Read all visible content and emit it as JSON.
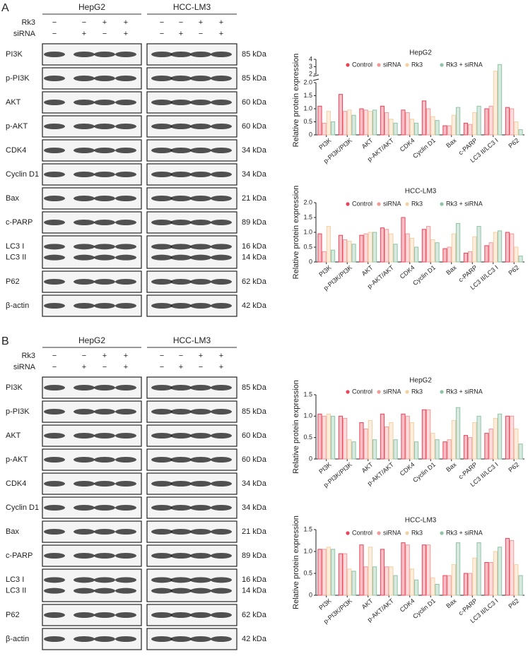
{
  "panels": [
    {
      "label": "A",
      "cells": [
        "HepG2",
        "HCC-LM3"
      ],
      "treatments": [
        {
          "name": "Rk3",
          "signs": [
            "−",
            "−",
            "+",
            "+"
          ]
        },
        {
          "name": "siRNA",
          "signs": [
            "−",
            "+",
            "−",
            "+"
          ]
        }
      ],
      "proteins": [
        {
          "names": [
            "PI3K"
          ],
          "kda": [
            "85 kDa"
          ]
        },
        {
          "names": [
            "p-PI3K"
          ],
          "kda": [
            "85 kDa"
          ]
        },
        {
          "names": [
            "AKT"
          ],
          "kda": [
            "60 kDa"
          ]
        },
        {
          "names": [
            "p-AKT"
          ],
          "kda": [
            "60 kDa"
          ]
        },
        {
          "names": [
            "CDK4"
          ],
          "kda": [
            "34 kDa"
          ]
        },
        {
          "names": [
            "Cyclin D1"
          ],
          "kda": [
            "34 kDa"
          ]
        },
        {
          "names": [
            "Bax"
          ],
          "kda": [
            "21 kDa"
          ]
        },
        {
          "names": [
            "c-PARP"
          ],
          "kda": [
            "89 kDa"
          ]
        },
        {
          "names": [
            "LC3 I",
            "LC3 II"
          ],
          "kda": [
            "16 kDa",
            "14 kDa"
          ]
        },
        {
          "names": [
            "P62"
          ],
          "kda": [
            "62 kDa"
          ]
        },
        {
          "names": [
            "β-actin"
          ],
          "kda": [
            "42 kDa"
          ]
        }
      ]
    },
    {
      "label": "B",
      "cells": [
        "HepG2",
        "HCC-LM3"
      ],
      "treatments": [
        {
          "name": "Rk3",
          "signs": [
            "−",
            "−",
            "+",
            "+"
          ]
        },
        {
          "name": "siRNA",
          "signs": [
            "−",
            "+",
            "−",
            "+"
          ]
        }
      ],
      "proteins": [
        {
          "names": [
            "PI3K"
          ],
          "kda": [
            "85 kDa"
          ]
        },
        {
          "names": [
            "p-PI3K"
          ],
          "kda": [
            "85 kDa"
          ]
        },
        {
          "names": [
            "AKT"
          ],
          "kda": [
            "60 kDa"
          ]
        },
        {
          "names": [
            "p-AKT"
          ],
          "kda": [
            "60 kDa"
          ]
        },
        {
          "names": [
            "CDK4"
          ],
          "kda": [
            "34 kDa"
          ]
        },
        {
          "names": [
            "Cyclin D1"
          ],
          "kda": [
            "34 kDa"
          ]
        },
        {
          "names": [
            "Bax"
          ],
          "kda": [
            "21 kDa"
          ]
        },
        {
          "names": [
            "c-PARP"
          ],
          "kda": [
            "89 kDa"
          ]
        },
        {
          "names": [
            "LC3 I",
            "LC3 II"
          ],
          "kda": [
            "16 kDa",
            "14 kDa"
          ]
        },
        {
          "names": [
            "P62"
          ],
          "kda": [
            "62 kDa"
          ]
        },
        {
          "names": [
            "β-actin"
          ],
          "kda": [
            "42 kDa"
          ]
        }
      ]
    }
  ],
  "chart_data": [
    {
      "type": "bar",
      "title": "HepG2",
      "ylabel": "Relative protein expression",
      "categories": [
        "PI3K",
        "p-PI3K/PI3K",
        "AKT",
        "p-AKT/AKT",
        "CDK4",
        "Cyclin D1",
        "Bax",
        "c-PARP",
        "LC3 II/LC3 I",
        "P62"
      ],
      "series": [
        {
          "name": "Control",
          "color": "#e8445a",
          "values": [
            1.1,
            1.55,
            1.0,
            1.1,
            0.95,
            1.3,
            0.35,
            0.45,
            1.0,
            1.05
          ]
        },
        {
          "name": "siRNA",
          "color": "#f19a9a",
          "values": [
            0.45,
            0.9,
            0.95,
            0.85,
            0.85,
            1.0,
            0.35,
            0.4,
            1.1,
            1.0
          ]
        },
        {
          "name": "Rk3",
          "color": "#f3cfa2",
          "values": [
            0.9,
            0.95,
            0.9,
            0.6,
            0.6,
            0.7,
            0.75,
            0.85,
            2.4,
            0.5
          ]
        },
        {
          "name": "Rk3 + siRNA",
          "color": "#8fc3a6",
          "values": [
            0.5,
            0.75,
            0.95,
            0.45,
            0.45,
            0.55,
            1.05,
            1.1,
            3.3,
            0.2
          ]
        }
      ],
      "ylim": [
        0,
        4
      ],
      "ybreak": 2,
      "yticks": [
        0,
        0.5,
        {
          "value": 1,
          "label": "1.0"
        },
        1.5,
        {
          "value": 2,
          "label": "2.0"
        },
        2,
        3,
        4
      ]
    },
    {
      "type": "bar",
      "title": "HCC-LM3",
      "ylabel": "Relative protein expression",
      "categories": [
        "PI3K",
        "p-PI3K/PI3K",
        "AKT",
        "p-AKT/AKT",
        "CDK4",
        "Cyclin D1",
        "Bax",
        "c-PARP",
        "LC3 II/LC3 I",
        "P62"
      ],
      "series": [
        {
          "name": "Control",
          "color": "#e8445a",
          "values": [
            0.95,
            0.9,
            0.9,
            1.15,
            1.5,
            1.1,
            0.45,
            0.3,
            0.55,
            1.0
          ]
        },
        {
          "name": "siRNA",
          "color": "#f19a9a",
          "values": [
            0.35,
            0.75,
            0.95,
            1.1,
            0.95,
            1.2,
            0.5,
            0.35,
            0.65,
            0.95
          ]
        },
        {
          "name": "Rk3",
          "color": "#f3cfa2",
          "values": [
            1.2,
            0.7,
            1.0,
            0.95,
            0.8,
            0.75,
            0.95,
            0.85,
            1.0,
            0.5
          ]
        },
        {
          "name": "Rk3 + siRNA",
          "color": "#8fc3a6",
          "values": [
            0.4,
            0.6,
            1.0,
            0.6,
            0.5,
            0.65,
            1.3,
            1.2,
            1.05,
            0.2
          ]
        }
      ],
      "ylim": [
        0,
        2
      ],
      "yticks": [
        0,
        0.5,
        {
          "value": 1,
          "label": "1.0"
        },
        1.5,
        {
          "value": 2,
          "label": "2.0"
        }
      ]
    },
    {
      "type": "bar",
      "title": "HepG2",
      "ylabel": "Relative protein expression",
      "categories": [
        "PI3K",
        "p-PI3K/PI3K",
        "AKT",
        "p-AKT/AKT",
        "CDK4",
        "Cyclin D1",
        "Bax",
        "c-PARP",
        "LC3 II/LC3 I",
        "P62"
      ],
      "series": [
        {
          "name": "Control",
          "color": "#e8445a",
          "values": [
            1.05,
            1.0,
            0.85,
            1.05,
            1.05,
            1.15,
            0.4,
            0.55,
            0.6,
            1.0
          ]
        },
        {
          "name": "siRNA",
          "color": "#f19a9a",
          "values": [
            1.0,
            0.95,
            0.7,
            0.75,
            1.0,
            1.15,
            0.45,
            0.5,
            0.7,
            1.0
          ]
        },
        {
          "name": "Rk3",
          "color": "#f3cfa2",
          "values": [
            1.05,
            0.45,
            0.9,
            0.85,
            0.85,
            0.6,
            0.9,
            0.85,
            0.95,
            0.7
          ]
        },
        {
          "name": "Rk3 + siRNA",
          "color": "#8fc3a6",
          "values": [
            1.0,
            0.4,
            0.45,
            0.45,
            0.4,
            0.45,
            1.2,
            1.0,
            1.05,
            0.35
          ]
        }
      ],
      "ylim": [
        0,
        1.5
      ],
      "yticks": [
        0,
        0.5,
        {
          "value": 1,
          "label": "1.0"
        },
        1.5
      ]
    },
    {
      "type": "bar",
      "title": "HCC-LM3",
      "ylabel": "Relative protein expression",
      "categories": [
        "PI3K",
        "p-PI3K/PI3K",
        "AKT",
        "p-AKT/AKT",
        "CDK4",
        "Cyclin D1",
        "Bax",
        "c-PARP",
        "LC3 II/LC3 I",
        "P62"
      ],
      "series": [
        {
          "name": "Control",
          "color": "#e8445a",
          "values": [
            1.05,
            0.95,
            1.15,
            1.05,
            1.2,
            1.15,
            0.45,
            0.5,
            0.75,
            1.3
          ]
        },
        {
          "name": "siRNA",
          "color": "#f19a9a",
          "values": [
            1.05,
            0.95,
            0.65,
            0.65,
            1.15,
            1.15,
            0.45,
            0.5,
            0.75,
            1.25
          ]
        },
        {
          "name": "Rk3",
          "color": "#f3cfa2",
          "values": [
            1.1,
            0.6,
            1.1,
            0.65,
            0.6,
            0.4,
            0.7,
            0.85,
            1.0,
            0.7
          ]
        },
        {
          "name": "Rk3 + siRNA",
          "color": "#8fc3a6",
          "values": [
            1.05,
            0.55,
            0.65,
            0.45,
            0.35,
            0.25,
            1.2,
            1.2,
            1.1,
            0.45
          ]
        }
      ],
      "ylim": [
        0,
        1.5
      ],
      "yticks": [
        0,
        0.5,
        {
          "value": 1,
          "label": "1.0"
        },
        1.5
      ]
    }
  ]
}
